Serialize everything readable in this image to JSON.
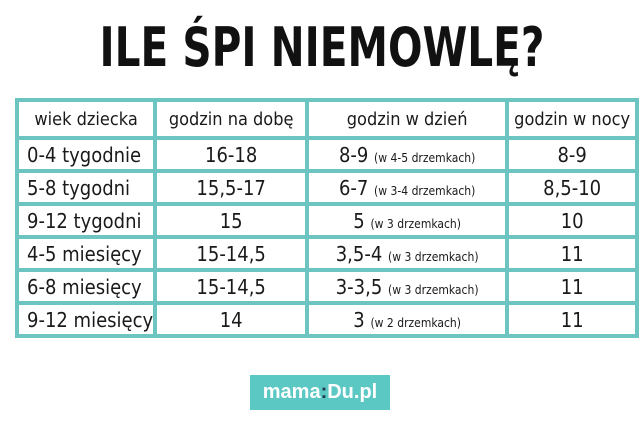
{
  "header": {
    "title": "ILE ŚPI NIEMOWLĘ?"
  },
  "table": {
    "columns": [
      "wiek dziecka",
      "godzin na dobę",
      "godzin w dzień",
      "godzin w nocy"
    ],
    "rows": [
      [
        "0-4 tygodnie",
        "16-18",
        {
          "text": "8-9",
          "note": "(w 4-5 drzemkach)"
        },
        "8-9"
      ],
      [
        "5-8 tygodni",
        "15,5-17",
        {
          "text": "6-7",
          "note": "(w 3-4 drzemkach)"
        },
        "8,5-10"
      ],
      [
        "9-12 tygodni",
        "15",
        {
          "text": "5",
          "note": "(w 3 drzemkach)"
        },
        "10"
      ],
      [
        "4-5 miesięcy",
        "15-14,5",
        {
          "text": "3,5-4",
          "note": "(w 3 drzemkach)"
        },
        "11"
      ],
      [
        "6-8 miesięcy",
        "15-14,5",
        {
          "text": "3-3,5",
          "note": "(w 3 drzemkach)"
        },
        "11"
      ],
      [
        "9-12 miesięcy",
        "14",
        {
          "text": "3",
          "note": "(w 2 drzemkach)"
        },
        "11"
      ]
    ]
  },
  "footer": {
    "logo": [
      "mama",
      ":",
      "Du.pl"
    ]
  }
}
